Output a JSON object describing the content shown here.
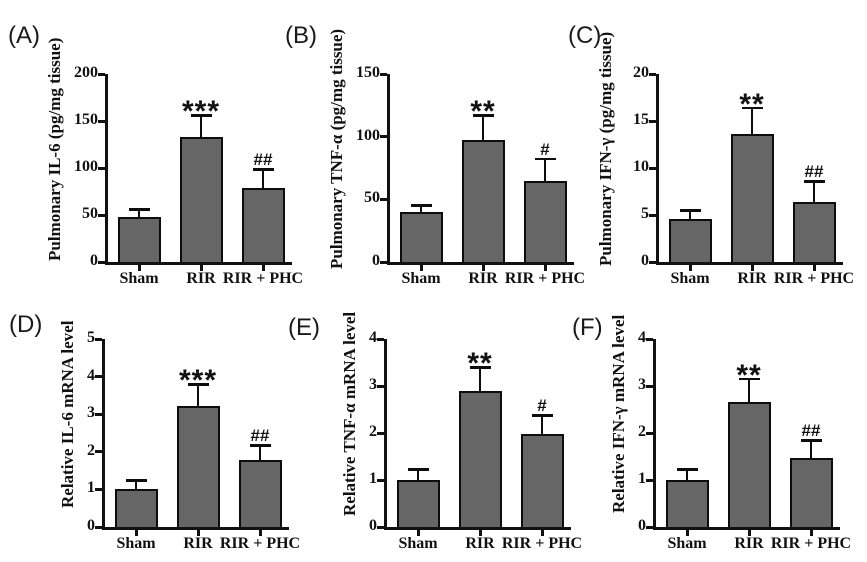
{
  "figure": {
    "background": "#ffffff",
    "bar_fill": "#666666",
    "bar_border": "#0d0d0d",
    "axis_color": "#111111",
    "text_color": "#111111"
  },
  "chart_data": [
    {
      "type": "bar",
      "panel": "(A)",
      "ylabel": "Pulmonary IL-6 (pg/mg tissue)",
      "categories": [
        "Sham",
        "RIR",
        "RIR + PHC"
      ],
      "values": [
        48,
        133,
        79
      ],
      "errors": [
        9,
        24,
        21
      ],
      "sig": [
        "",
        "***",
        "##"
      ],
      "ylim": [
        0,
        200
      ],
      "yticks": [
        0,
        50,
        100,
        150,
        200
      ]
    },
    {
      "type": "bar",
      "panel": "(B)",
      "ylabel": "Pulmonary TNF-α (pg/mg tissue)",
      "categories": [
        "Sham",
        "RIR",
        "RIR + PHC"
      ],
      "values": [
        40,
        97,
        65
      ],
      "errors": [
        6,
        21,
        18
      ],
      "sig": [
        "",
        "**",
        "#"
      ],
      "ylim": [
        0,
        150
      ],
      "yticks": [
        0,
        50,
        100,
        150
      ]
    },
    {
      "type": "bar",
      "panel": "(C)",
      "ylabel": "Pulmonary IFN-γ (pg/mg tissue)",
      "categories": [
        "Sham",
        "RIR",
        "RIR + PHC"
      ],
      "values": [
        4.6,
        13.6,
        6.4
      ],
      "errors": [
        1.0,
        2.9,
        2.3
      ],
      "sig": [
        "",
        "**",
        "##"
      ],
      "ylim": [
        0,
        20
      ],
      "yticks": [
        0,
        5,
        10,
        15,
        20
      ]
    },
    {
      "type": "bar",
      "panel": "(D)",
      "ylabel": "Relative IL-6 mRNA level",
      "categories": [
        "Sham",
        "RIR",
        "RIR + PHC"
      ],
      "values": [
        1.0,
        3.22,
        1.78
      ],
      "errors": [
        0.27,
        0.6,
        0.42
      ],
      "sig": [
        "",
        "***",
        "##"
      ],
      "ylim": [
        0,
        5
      ],
      "yticks": [
        0,
        1,
        2,
        3,
        4,
        5
      ]
    },
    {
      "type": "bar",
      "panel": "(E)",
      "ylabel": "Relative TNF-α mRNA level",
      "categories": [
        "Sham",
        "RIR",
        "RIR + PHC"
      ],
      "values": [
        1.0,
        2.9,
        1.98
      ],
      "errors": [
        0.25,
        0.52,
        0.42
      ],
      "sig": [
        "",
        "**",
        "#"
      ],
      "ylim": [
        0,
        4
      ],
      "yticks": [
        0,
        1,
        2,
        3,
        4
      ]
    },
    {
      "type": "bar",
      "panel": "(F)",
      "ylabel": "Relative IFN-γ mRNA level",
      "categories": [
        "Sham",
        "RIR",
        "RIR + PHC"
      ],
      "values": [
        1.0,
        2.65,
        1.47
      ],
      "errors": [
        0.25,
        0.53,
        0.4
      ],
      "sig": [
        "",
        "**",
        "##"
      ],
      "ylim": [
        0,
        4
      ],
      "yticks": [
        0,
        1,
        2,
        3,
        4
      ]
    }
  ]
}
